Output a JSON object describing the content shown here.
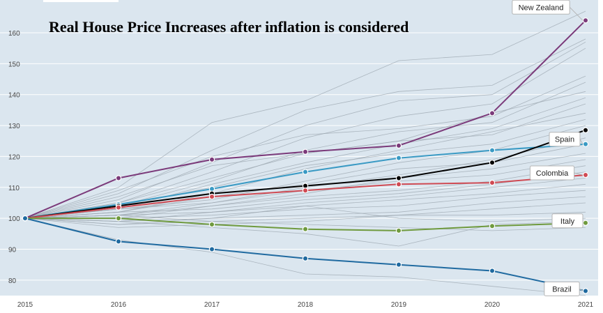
{
  "chart_data": {
    "type": "line",
    "title": "Real House Price Increases after inflation is considered",
    "xlabel": "",
    "ylabel": "",
    "x": [
      2015,
      2016,
      2017,
      2018,
      2019,
      2020,
      2021
    ],
    "x_tick_labels": [
      "2015",
      "2016",
      "2017",
      "2018",
      "2019",
      "2020",
      "2021"
    ],
    "y_ticks": [
      80,
      90,
      100,
      110,
      120,
      130,
      140,
      150,
      160
    ],
    "ylim": [
      75,
      167
    ],
    "grid": true,
    "plot_background": "#dbe6ef",
    "series": [
      {
        "name": "New Zealand",
        "color": "#7b3a7a",
        "values": [
          100,
          113,
          119,
          121.5,
          123.5,
          134,
          164
        ]
      },
      {
        "name": "Spain",
        "color": "#3a9ac4",
        "values": [
          100,
          104.5,
          109.5,
          115,
          119.5,
          122,
          124
        ]
      },
      {
        "color": "#000000",
        "values": [
          100,
          104,
          108,
          110.5,
          113,
          118,
          128.5
        ]
      },
      {
        "name": "Colombia",
        "color": "#cf4a53",
        "values": [
          100,
          103.5,
          107,
          109,
          111,
          111.5,
          114
        ]
      },
      {
        "name": "Italy",
        "color": "#6f9a3e",
        "values": [
          100,
          100,
          98,
          96.5,
          96,
          97.5,
          98.5
        ]
      },
      {
        "name": "Brazil",
        "color": "#1f6aa0",
        "values": [
          100,
          92.5,
          90,
          87,
          85,
          83,
          76.5
        ]
      }
    ],
    "background_series": [
      [
        100,
        110,
        131,
        138,
        151,
        153,
        167
      ],
      [
        100,
        108,
        122,
        135,
        141,
        143,
        158
      ],
      [
        100,
        106,
        118,
        130,
        138,
        140,
        157
      ],
      [
        100,
        105,
        115,
        126,
        133,
        137,
        155
      ],
      [
        100,
        109,
        120,
        127,
        129,
        133,
        146
      ],
      [
        100,
        104,
        112,
        122,
        128,
        131,
        144
      ],
      [
        100,
        107,
        117,
        121,
        125,
        134,
        141
      ],
      [
        100,
        103,
        111,
        118,
        124,
        129,
        139
      ],
      [
        100,
        105,
        113,
        121,
        125,
        127,
        137
      ],
      [
        100,
        102,
        108,
        116,
        122,
        128,
        134
      ],
      [
        100,
        104,
        110,
        117,
        121,
        124,
        132
      ],
      [
        100,
        103,
        106,
        112,
        118,
        122,
        130
      ],
      [
        100,
        101,
        105,
        110,
        114,
        119,
        126
      ],
      [
        100,
        102,
        107,
        111,
        116,
        118,
        124
      ],
      [
        100,
        101,
        104,
        108,
        113,
        116,
        121
      ],
      [
        100,
        103,
        105,
        109,
        112,
        114,
        119
      ],
      [
        100,
        100,
        104,
        107,
        109,
        112,
        117
      ],
      [
        100,
        102,
        103,
        106,
        108,
        111,
        115
      ],
      [
        100,
        101,
        102,
        105,
        107,
        110,
        113
      ],
      [
        100,
        99,
        102,
        104,
        106,
        108,
        111
      ],
      [
        100,
        100,
        101,
        103,
        104,
        107,
        109
      ],
      [
        100,
        99,
        100,
        101,
        102,
        105,
        107
      ],
      [
        100,
        98,
        99,
        100,
        101,
        103,
        105
      ],
      [
        100,
        97,
        98,
        99,
        101,
        101,
        102
      ],
      [
        100,
        98,
        100,
        104,
        100,
        99,
        100
      ],
      [
        100,
        99,
        97,
        95,
        91,
        98,
        99
      ],
      [
        100,
        101,
        99,
        98,
        97,
        96,
        97
      ],
      [
        100,
        93,
        89,
        82,
        81,
        78,
        75
      ]
    ]
  }
}
